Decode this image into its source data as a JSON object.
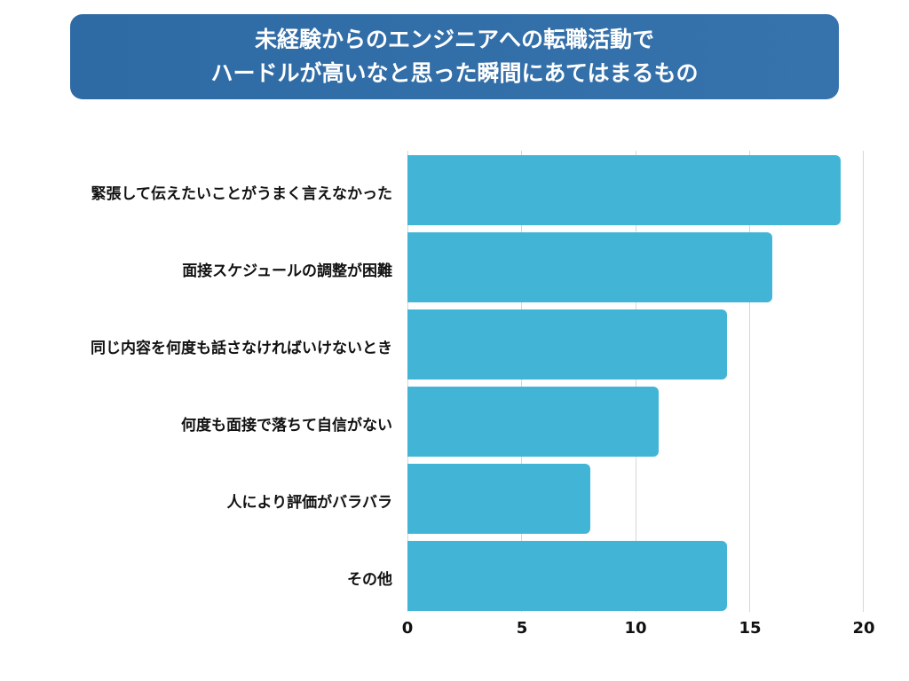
{
  "title": {
    "line1": "未経験からのエンジニアへの転職活動で",
    "line2": "ハードルが高いなと思った瞬間にあてはまるもの"
  },
  "colors": {
    "bar": "#42b5d6",
    "title_bg": "#3270a8",
    "grid": "#d4d6dc"
  },
  "chart_data": {
    "type": "bar",
    "orientation": "horizontal",
    "title": "未経験からのエンジニアへの転職活動でハードルが高いなと思った瞬間にあてはまるもの",
    "categories": [
      "緊張して伝えたいことがうまく言えなかった",
      "面接スケジュールの調整が困難",
      "同じ内容を何度も話さなければいけないとき",
      "何度も面接で落ちて自信がない",
      "人により評価がバラバラ",
      "その他"
    ],
    "values": [
      19,
      16,
      14,
      11,
      8,
      14
    ],
    "xlabel": "",
    "ylabel": "",
    "xlim": [
      0,
      20
    ],
    "xticks": [
      "0",
      "5",
      "10",
      "15",
      "20"
    ],
    "grid": true,
    "legend": null
  }
}
